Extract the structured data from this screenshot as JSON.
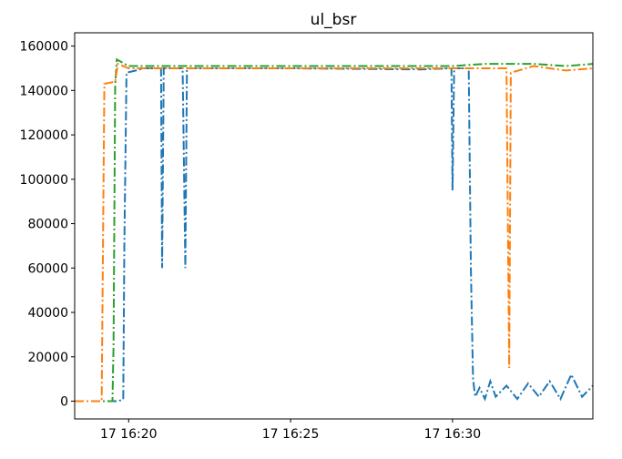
{
  "chart_data": {
    "type": "line",
    "title": "ul_bsr",
    "xlabel": "",
    "ylabel": "",
    "xlim": [
      "16:18:20",
      "16:34:20"
    ],
    "ylim": [
      -8000,
      166000
    ],
    "x_ticks": [
      {
        "time": "16:20:00",
        "label": "17 16:20"
      },
      {
        "time": "16:25:00",
        "label": "17 16:25"
      },
      {
        "time": "16:30:00",
        "label": "17 16:30"
      }
    ],
    "y_ticks": [
      0,
      20000,
      40000,
      60000,
      80000,
      100000,
      120000,
      140000,
      160000
    ],
    "y_tick_labels": [
      "0",
      "20000",
      "40000",
      "60000",
      "80000",
      "100000",
      "120000",
      "140000",
      "160000"
    ],
    "grid": false,
    "legend": "none",
    "series": [
      {
        "color": "#1f77b4",
        "dash": "dashdot",
        "points": [
          [
            "16:18:20",
            0
          ],
          [
            "16:19:40",
            0
          ],
          [
            "16:19:50",
            800
          ],
          [
            "16:19:52",
            70000
          ],
          [
            "16:19:56",
            148000
          ],
          [
            "16:20:30",
            150000
          ],
          [
            "16:21:00",
            150000
          ],
          [
            "16:21:02",
            60000
          ],
          [
            "16:21:05",
            150000
          ],
          [
            "16:21:40",
            150000
          ],
          [
            "16:21:45",
            60000
          ],
          [
            "16:21:48",
            150000
          ],
          [
            "16:25:00",
            150000
          ],
          [
            "16:29:00",
            149500
          ],
          [
            "16:29:58",
            150000
          ],
          [
            "16:30:00",
            95000
          ],
          [
            "16:30:03",
            150000
          ],
          [
            "16:30:30",
            150000
          ],
          [
            "16:30:34",
            60000
          ],
          [
            "16:30:38",
            10000
          ],
          [
            "16:30:42",
            2000
          ],
          [
            "16:30:50",
            6000
          ],
          [
            "16:31:00",
            1000
          ],
          [
            "16:31:10",
            9000
          ],
          [
            "16:31:20",
            2000
          ],
          [
            "16:31:40",
            7000
          ],
          [
            "16:32:00",
            1000
          ],
          [
            "16:32:20",
            8000
          ],
          [
            "16:32:40",
            2000
          ],
          [
            "16:33:00",
            9000
          ],
          [
            "16:33:20",
            1000
          ],
          [
            "16:33:40",
            12000
          ],
          [
            "16:34:00",
            2000
          ],
          [
            "16:34:20",
            7000
          ]
        ]
      },
      {
        "color": "#ff7f0e",
        "dash": "dashdot",
        "points": [
          [
            "16:18:20",
            0
          ],
          [
            "16:19:10",
            0
          ],
          [
            "16:19:15",
            143000
          ],
          [
            "16:19:35",
            144000
          ],
          [
            "16:19:40",
            152000
          ],
          [
            "16:20:00",
            150000
          ],
          [
            "16:25:00",
            150000
          ],
          [
            "16:30:00",
            150000
          ],
          [
            "16:31:40",
            150000
          ],
          [
            "16:31:45",
            15000
          ],
          [
            "16:31:48",
            148000
          ],
          [
            "16:32:30",
            151000
          ],
          [
            "16:33:30",
            149000
          ],
          [
            "16:34:20",
            150000
          ]
        ]
      },
      {
        "color": "#2ca02c",
        "dash": "dashdot",
        "points": [
          [
            "16:18:20",
            0
          ],
          [
            "16:19:30",
            0
          ],
          [
            "16:19:32",
            25000
          ],
          [
            "16:19:35",
            142000
          ],
          [
            "16:19:38",
            154000
          ],
          [
            "16:20:00",
            151000
          ],
          [
            "16:25:00",
            151000
          ],
          [
            "16:30:00",
            151000
          ],
          [
            "16:31:00",
            152000
          ],
          [
            "16:32:30",
            152000
          ],
          [
            "16:33:30",
            151000
          ],
          [
            "16:34:20",
            152000
          ]
        ]
      }
    ]
  }
}
